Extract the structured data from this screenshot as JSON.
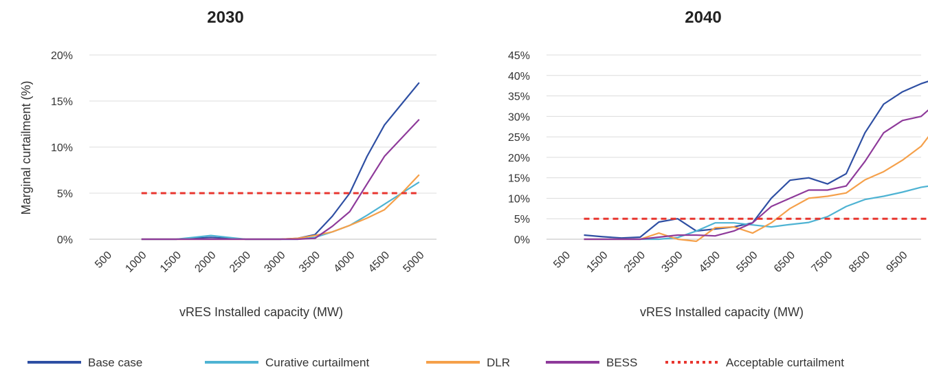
{
  "chart_data": [
    {
      "type": "line",
      "title": "2030",
      "xlabel": "vRES Installed capacity (MW)",
      "ylabel": "Marginal curtailment (%)",
      "x_tick_labels": [
        "500",
        "1000",
        "1500",
        "2000",
        "2500",
        "3000",
        "3500",
        "4000",
        "4500",
        "5000"
      ],
      "ylim": [
        0,
        20
      ],
      "y_ticks": [
        "0%",
        "5%",
        "10%",
        "15%",
        "20%"
      ],
      "grid": "horizontal",
      "x": [
        1000,
        1250,
        1500,
        1750,
        2000,
        2250,
        2500,
        2750,
        3000,
        3250,
        3500,
        3750,
        4000,
        4250,
        4500,
        4750,
        5000
      ],
      "series": [
        {
          "name": "Base case",
          "color": "#2E4FA3",
          "values": [
            0,
            0,
            0,
            0.1,
            0.2,
            0.1,
            0,
            0,
            0,
            0.1,
            0.5,
            2.5,
            5,
            9,
            12.4,
            14.7,
            17
          ]
        },
        {
          "name": "Curative curtailment",
          "color": "#4EB3D3",
          "values": [
            0,
            0,
            0,
            0.2,
            0.4,
            0.2,
            0,
            0,
            0,
            0,
            0.2,
            0.8,
            1.5,
            2.6,
            3.8,
            5,
            6.2
          ]
        },
        {
          "name": "DLR",
          "color": "#F5A04A",
          "values": [
            0,
            0,
            0,
            0,
            0,
            0,
            0,
            0,
            0,
            0.1,
            0.4,
            0.8,
            1.5,
            2.3,
            3.2,
            5,
            7
          ]
        },
        {
          "name": "BESS",
          "color": "#8E3A9A",
          "values": [
            0,
            0,
            0,
            0,
            0,
            0,
            0,
            0,
            0,
            0,
            0.1,
            1.4,
            3,
            6,
            9,
            11,
            13
          ]
        },
        {
          "name": "Acceptable curtailment",
          "color": "#E8362F",
          "dashed": true,
          "values": [
            5,
            5,
            5,
            5,
            5,
            5,
            5,
            5,
            5,
            5,
            5,
            5,
            5,
            5,
            5,
            5,
            5
          ]
        }
      ]
    },
    {
      "type": "line",
      "title": "2040",
      "xlabel": "vRES Installed capacity (MW)",
      "ylabel": "",
      "x_tick_labels": [
        "500",
        "1500",
        "2500",
        "3500",
        "4500",
        "5500",
        "6500",
        "7500",
        "8500",
        "9500"
      ],
      "ylim": [
        0,
        45
      ],
      "y_ticks": [
        "0%",
        "5%",
        "10%",
        "15%",
        "20%",
        "25%",
        "30%",
        "35%",
        "40%",
        "45%"
      ],
      "grid": "horizontal",
      "x": [
        1000,
        1500,
        2000,
        2500,
        3000,
        3500,
        4000,
        4500,
        5000,
        5500,
        6000,
        6500,
        7000,
        7500,
        8000,
        8500,
        9000,
        9500,
        10000,
        10500
      ],
      "series": [
        {
          "name": "Base case",
          "color": "#2E4FA3",
          "values": [
            1,
            0.6,
            0.3,
            0.5,
            4.2,
            5,
            2,
            2.5,
            3,
            4,
            10,
            14.4,
            15,
            13.5,
            16,
            26,
            33,
            36,
            38,
            39.5
          ]
        },
        {
          "name": "Curative curtailment",
          "color": "#4EB3D3",
          "values": [
            0,
            0,
            0,
            0,
            0,
            0.4,
            2,
            4,
            4,
            3.5,
            3,
            3.6,
            4.1,
            5.5,
            8,
            9.7,
            10.5,
            11.5,
            12.7,
            13.4
          ]
        },
        {
          "name": "DLR",
          "color": "#F5A04A",
          "values": [
            0,
            0,
            0,
            0,
            1.5,
            0,
            -0.5,
            2.8,
            3,
            1.5,
            4,
            7.5,
            10,
            10.5,
            11.3,
            14.5,
            16.5,
            19.3,
            22.7,
            28.7
          ]
        },
        {
          "name": "BESS",
          "color": "#8E3A9A",
          "values": [
            0,
            0,
            0,
            0,
            0.5,
            1,
            1,
            0.8,
            2,
            4,
            8,
            10,
            12,
            12,
            13,
            19,
            26,
            29,
            30,
            34
          ]
        },
        {
          "name": "Acceptable curtailment",
          "color": "#E8362F",
          "dashed": true,
          "values": [
            5,
            5,
            5,
            5,
            5,
            5,
            5,
            5,
            5,
            5,
            5,
            5,
            5,
            5,
            5,
            5,
            5,
            5,
            5,
            5
          ]
        }
      ]
    }
  ],
  "legend": {
    "placement": "bottom",
    "items": [
      {
        "label": "Base case",
        "color": "#2E4FA3",
        "dashed": false
      },
      {
        "label": "Curative curtailment",
        "color": "#4EB3D3",
        "dashed": false
      },
      {
        "label": "DLR",
        "color": "#F5A04A",
        "dashed": false
      },
      {
        "label": "BESS",
        "color": "#8E3A9A",
        "dashed": false
      },
      {
        "label": "Acceptable curtailment",
        "color": "#E8362F",
        "dashed": true
      }
    ]
  }
}
